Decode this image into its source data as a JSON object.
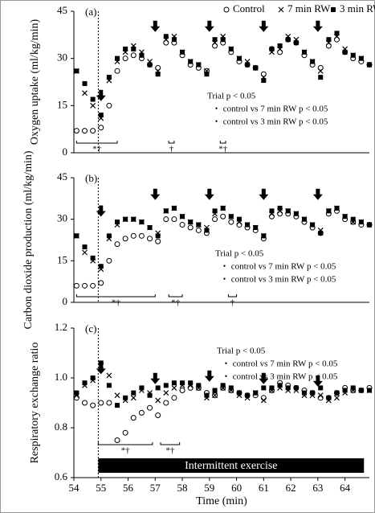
{
  "chart_data": [
    {
      "type": "scatter",
      "panel_label": "(a)",
      "y_label": "Oxygen uptake (ml/kg/min)",
      "legend": "top-right",
      "x": [
        54.1,
        54.4,
        54.7,
        55.0,
        55.3,
        55.6,
        55.9,
        56.2,
        56.5,
        56.8,
        57.1,
        57.4,
        57.7,
        58.0,
        58.3,
        58.6,
        58.9,
        59.2,
        59.5,
        59.8,
        60.1,
        60.4,
        60.7,
        61.0,
        61.3,
        61.6,
        61.9,
        62.2,
        62.5,
        62.8,
        63.1,
        63.4,
        63.7,
        64.0,
        64.3,
        64.6,
        64.9
      ],
      "series": [
        {
          "name": "Control",
          "color": "#000000",
          "marker": "circle",
          "values": [
            7,
            7,
            7,
            8,
            15,
            26,
            30,
            31,
            30,
            28,
            27,
            35,
            35,
            31,
            28,
            27,
            26,
            34,
            35,
            32,
            29,
            28,
            27,
            25,
            33,
            32,
            36,
            35,
            31,
            28,
            27,
            34,
            36,
            32,
            30,
            29,
            28
          ]
        },
        {
          "name": "7 min RW",
          "color": "#000000",
          "marker": "x",
          "values": [
            26,
            19,
            15,
            11,
            23,
            29,
            32,
            34,
            32,
            29,
            26,
            36,
            37,
            32,
            29,
            28,
            26,
            35,
            37,
            33,
            30,
            29,
            27,
            24,
            32,
            33,
            37,
            36,
            32,
            29,
            26,
            35,
            37,
            33,
            31,
            30,
            28
          ]
        },
        {
          "name": "3 min RW",
          "color": "#000000",
          "marker": "square",
          "values": [
            26,
            22,
            17,
            12,
            24,
            30,
            33,
            33,
            31,
            28,
            25,
            37,
            36,
            32,
            29,
            28,
            25,
            36,
            36,
            33,
            30,
            28,
            27,
            23,
            33,
            34,
            36,
            35,
            32,
            29,
            24,
            36,
            38,
            32,
            31,
            30,
            28
          ]
        }
      ],
      "xlim": [
        54,
        64.9
      ],
      "ylim": [
        0,
        45
      ],
      "yticks": [
        0,
        15,
        30,
        45
      ],
      "onset_x": 54.9,
      "arrows": [
        {
          "x": 55,
          "y": 20
        },
        {
          "x": 57,
          "y": 42
        },
        {
          "x": 59,
          "y": 42
        },
        {
          "x": 61,
          "y": 42
        },
        {
          "x": 63,
          "y": 42
        }
      ],
      "stats": [
        "Trial p < 0.05",
        "・ control vs 7 min RW p < 0.05",
        "・ control vs 3 min RW p < 0.05"
      ],
      "brackets": [
        {
          "x": [
            54.1,
            55.6
          ],
          "label": "*†"
        },
        {
          "x": [
            57.5,
            57.7
          ],
          "label": "†"
        },
        {
          "x": [
            59.4,
            59.6
          ],
          "label": "*†"
        }
      ]
    },
    {
      "type": "scatter",
      "panel_label": "(b)",
      "y_label": "Carbon dioxide production (ml/kg/min)",
      "x": [
        54.1,
        54.4,
        54.7,
        55.0,
        55.3,
        55.6,
        55.9,
        56.2,
        56.5,
        56.8,
        57.1,
        57.4,
        57.7,
        58.0,
        58.3,
        58.6,
        58.9,
        59.2,
        59.5,
        59.8,
        60.1,
        60.4,
        60.7,
        61.0,
        61.3,
        61.6,
        61.9,
        62.2,
        62.5,
        62.8,
        63.1,
        63.4,
        63.7,
        64.0,
        64.3,
        64.6,
        64.9
      ],
      "series": [
        {
          "name": "Control",
          "color": "#000000",
          "marker": "circle",
          "values": [
            6,
            6,
            6,
            7,
            15,
            21,
            23,
            24,
            24,
            23,
            22,
            30,
            30,
            28,
            27,
            26,
            25,
            30,
            31,
            29,
            28,
            27,
            26,
            23,
            31,
            32,
            32,
            31,
            29,
            27,
            25,
            32,
            33,
            30,
            29,
            28,
            28
          ]
        },
        {
          "name": "7 min RW",
          "color": "#000000",
          "marker": "x",
          "values": [
            24,
            18,
            15,
            12,
            23,
            28,
            30,
            30,
            29,
            27,
            25,
            33,
            34,
            31,
            29,
            28,
            27,
            32,
            34,
            31,
            29,
            28,
            27,
            24,
            32,
            33,
            33,
            32,
            30,
            28,
            26,
            33,
            34,
            31,
            29,
            29,
            28
          ]
        },
        {
          "name": "3 min RW",
          "color": "#000000",
          "marker": "square",
          "values": [
            24,
            20,
            16,
            13,
            24,
            29,
            30,
            30,
            29,
            27,
            24,
            33,
            34,
            31,
            29,
            28,
            26,
            33,
            34,
            31,
            30,
            28,
            27,
            24,
            33,
            34,
            33,
            32,
            30,
            28,
            25,
            33,
            34,
            31,
            30,
            29,
            28
          ]
        }
      ],
      "xlim": [
        54,
        64.9
      ],
      "ylim": [
        0,
        45
      ],
      "yticks": [
        0,
        15,
        30,
        45
      ],
      "onset_x": 54.9,
      "arrows": [
        {
          "x": 55,
          "y": 35
        },
        {
          "x": 57,
          "y": 41
        },
        {
          "x": 59,
          "y": 41
        },
        {
          "x": 61,
          "y": 41
        },
        {
          "x": 63,
          "y": 41
        }
      ],
      "stats": [
        "Trial p < 0.05",
        "・ control vs 7 min RW p < 0.05",
        "・ control vs 3 min RW p < 0.05"
      ],
      "brackets": [
        {
          "x": [
            54.1,
            57.0
          ],
          "label": "*†"
        },
        {
          "x": [
            57.5,
            58.0
          ],
          "label": "*†"
        },
        {
          "x": [
            59.7,
            60.0
          ],
          "label": "†"
        }
      ]
    },
    {
      "type": "scatter",
      "panel_label": "(c)",
      "y_label": "Respiratory exchange ratio",
      "x_label": "Time (min)",
      "x": [
        54.1,
        54.4,
        54.7,
        55.0,
        55.3,
        55.6,
        55.9,
        56.2,
        56.5,
        56.8,
        57.1,
        57.4,
        57.7,
        58.0,
        58.3,
        58.6,
        58.9,
        59.2,
        59.5,
        59.8,
        60.1,
        60.4,
        60.7,
        61.0,
        61.3,
        61.6,
        61.9,
        62.2,
        62.5,
        62.8,
        63.1,
        63.4,
        63.7,
        64.0,
        64.3,
        64.6,
        64.9
      ],
      "series": [
        {
          "name": "Control",
          "color": "#000000",
          "marker": "circle",
          "values": [
            0.92,
            0.9,
            0.89,
            0.9,
            0.9,
            0.75,
            0.78,
            0.84,
            0.86,
            0.88,
            0.85,
            0.9,
            0.92,
            0.95,
            0.96,
            0.96,
            0.94,
            0.93,
            0.96,
            0.95,
            0.94,
            0.93,
            0.93,
            0.92,
            0.95,
            0.98,
            0.97,
            0.96,
            0.95,
            0.94,
            0.92,
            0.92,
            0.94,
            0.96,
            0.95,
            0.95,
            0.96
          ]
        },
        {
          "name": "7 min RW",
          "color": "#000000",
          "marker": "x",
          "values": [
            0.93,
            0.97,
            0.99,
            1.05,
            1.01,
            0.93,
            0.91,
            0.92,
            0.95,
            0.94,
            0.91,
            0.94,
            0.96,
            0.97,
            0.97,
            0.96,
            0.92,
            0.93,
            0.96,
            0.95,
            0.93,
            0.92,
            0.94,
            0.91,
            0.95,
            0.96,
            0.95,
            0.95,
            0.93,
            0.93,
            0.93,
            0.91,
            0.92,
            0.94,
            0.95,
            0.95,
            0.95
          ]
        },
        {
          "name": "3 min RW",
          "color": "#000000",
          "marker": "square",
          "values": [
            0.94,
            0.98,
            1.0,
            1.06,
            0.97,
            0.89,
            0.92,
            0.94,
            0.96,
            0.93,
            0.96,
            0.97,
            0.98,
            0.98,
            0.98,
            0.97,
            0.93,
            0.95,
            0.97,
            0.96,
            0.94,
            0.93,
            0.94,
            0.96,
            0.96,
            0.97,
            0.96,
            0.96,
            0.94,
            0.94,
            0.96,
            0.92,
            0.94,
            0.95,
            0.96,
            0.95,
            0.95
          ]
        }
      ],
      "xlim": [
        54,
        64.9
      ],
      "ylim": [
        0.6,
        1.2
      ],
      "xticks": [
        54,
        55,
        56,
        57,
        58,
        59,
        60,
        61,
        62,
        63,
        64
      ],
      "yticks": [
        {
          "value": 0.6,
          "label": "0.6"
        },
        {
          "value": 0.8,
          "label": "0.8"
        },
        {
          "value": 1,
          "label": "1.0"
        },
        {
          "value": 1.2,
          "label": "1.2"
        }
      ],
      "onset_x": 54.9,
      "arrows": [
        {
          "x": 55,
          "y": 1.06
        },
        {
          "x": 57,
          "y": 1.02
        },
        {
          "x": 59,
          "y": 1.03
        },
        {
          "x": 61,
          "y": 1.02
        },
        {
          "x": 63,
          "y": 1.01
        }
      ],
      "stats": [
        "Trial p < 0.05",
        "・ control vs 7 min RW p < 0.05",
        "・ control vs 3 min RW p < 0.05"
      ],
      "brackets": [
        {
          "x": [
            54.9,
            56.9
          ],
          "label": "*†"
        },
        {
          "x": [
            57.2,
            57.9
          ],
          "label": "*†"
        }
      ],
      "exercise_bar": {
        "x": [
          54.9,
          64.7
        ],
        "label": "Intermittent exercise"
      }
    }
  ]
}
